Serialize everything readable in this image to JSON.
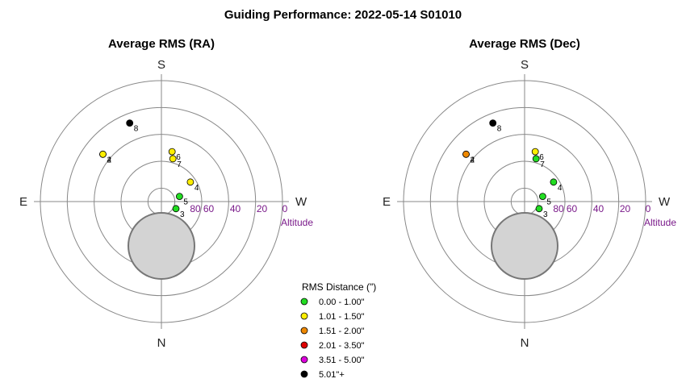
{
  "title": "Guiding Performance: 2022-05-14 S01010",
  "compass": {
    "top": "S",
    "bottom": "N",
    "left": "E",
    "right": "W"
  },
  "altitude_axis": {
    "label": "Altitude",
    "ticks": [
      "80",
      "60",
      "40",
      "20",
      "0"
    ]
  },
  "legend": {
    "title": "RMS Distance (\")",
    "entries": [
      {
        "label": "0.00 - 1.00\"",
        "color": "#22dd22"
      },
      {
        "label": "1.01 - 1.50\"",
        "color": "#ffee00"
      },
      {
        "label": "1.51 - 2.00\"",
        "color": "#ee8800"
      },
      {
        "label": "2.01 - 3.50\"",
        "color": "#dd0000"
      },
      {
        "label": "3.51 - 5.00\"",
        "color": "#dd00dd"
      },
      {
        "label": "5.01\"+",
        "color": "#000000"
      }
    ]
  },
  "chart_data": [
    {
      "type": "scatter",
      "title": "Average RMS (RA)",
      "coordinates": "polar (azimuth, altitude)",
      "altitude_range": [
        0,
        90
      ],
      "points": [
        {
          "label": "2",
          "azimuth": 129,
          "altitude": 34,
          "rms_class": "1.01 - 1.50\""
        },
        {
          "label": "4",
          "azimuth": 129,
          "altitude": 34,
          "rms_class": "1.01 - 1.50\""
        },
        {
          "label": "3",
          "azimuth": 296,
          "altitude": 78,
          "rms_class": "0.00 - 1.00\""
        },
        {
          "label": "4",
          "azimuth": 236,
          "altitude": 64,
          "rms_class": "1.01 - 1.50\""
        },
        {
          "label": "5",
          "azimuth": 254,
          "altitude": 76,
          "rms_class": "0.00 - 1.00\""
        },
        {
          "label": "6",
          "azimuth": 192,
          "altitude": 52,
          "rms_class": "1.01 - 1.50\""
        },
        {
          "label": "7",
          "azimuth": 195,
          "altitude": 57,
          "rms_class": "1.01 - 1.50\""
        },
        {
          "label": "8",
          "azimuth": 158,
          "altitude": 27,
          "rms_class": "5.01\"+"
        }
      ]
    },
    {
      "type": "scatter",
      "title": "Average RMS (Dec)",
      "coordinates": "polar (azimuth, altitude)",
      "altitude_range": [
        0,
        90
      ],
      "points": [
        {
          "label": "2",
          "azimuth": 129,
          "altitude": 34,
          "rms_class": "1.51 - 2.00\""
        },
        {
          "label": "4",
          "azimuth": 129,
          "altitude": 34,
          "rms_class": "1.51 - 2.00\""
        },
        {
          "label": "3",
          "azimuth": 296,
          "altitude": 78,
          "rms_class": "0.00 - 1.00\""
        },
        {
          "label": "4",
          "azimuth": 236,
          "altitude": 64,
          "rms_class": "0.00 - 1.00\""
        },
        {
          "label": "5",
          "azimuth": 254,
          "altitude": 76,
          "rms_class": "0.00 - 1.00\""
        },
        {
          "label": "6",
          "azimuth": 192,
          "altitude": 52,
          "rms_class": "1.01 - 1.50\""
        },
        {
          "label": "7",
          "azimuth": 195,
          "altitude": 57,
          "rms_class": "0.00 - 1.00\""
        },
        {
          "label": "8",
          "azimuth": 158,
          "altitude": 27,
          "rms_class": "5.01\"+"
        }
      ]
    }
  ]
}
